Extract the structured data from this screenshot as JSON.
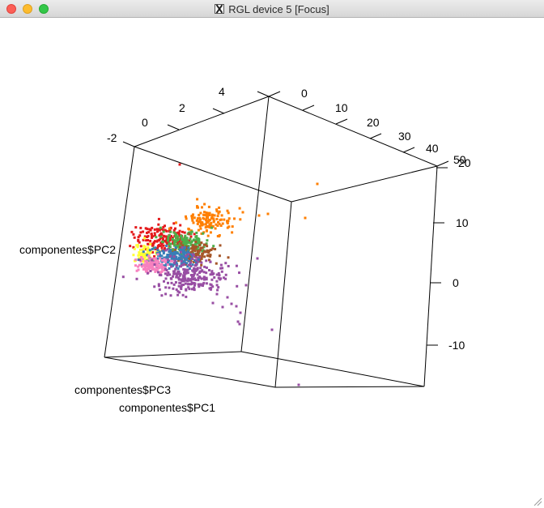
{
  "window": {
    "title": "RGL device 5 [Focus]"
  },
  "chart_data": {
    "type": "scatter",
    "axes": {
      "pc3": {
        "label": "componentes$PC3",
        "ticks": [
          "-2",
          "0",
          "2",
          "4"
        ]
      },
      "pc1": {
        "label": "componentes$PC1",
        "ticks": [
          "0",
          "10",
          "20",
          "30",
          "40",
          "50"
        ]
      },
      "pc2": {
        "label": "componentes$PC2",
        "ticks": [
          "20",
          "10",
          "0",
          "-10"
        ]
      }
    },
    "clusters": [
      {
        "color": "#e41a1c",
        "count": 170
      },
      {
        "color": "#ff7f00",
        "count": 130
      },
      {
        "color": "#4daf4a",
        "count": 170
      },
      {
        "color": "#a65628",
        "count": 130
      },
      {
        "color": "#ffff33",
        "count": 80
      },
      {
        "color": "#377eb8",
        "count": 170
      },
      {
        "color": "#f781bf",
        "count": 110
      },
      {
        "color": "#984ea3",
        "count": 240
      }
    ],
    "outliers": [
      {
        "color": "#e41a1c",
        "count": 1
      },
      {
        "color": "#ff7f00",
        "count": 5
      },
      {
        "color": "#984ea3",
        "count": 14
      }
    ]
  }
}
